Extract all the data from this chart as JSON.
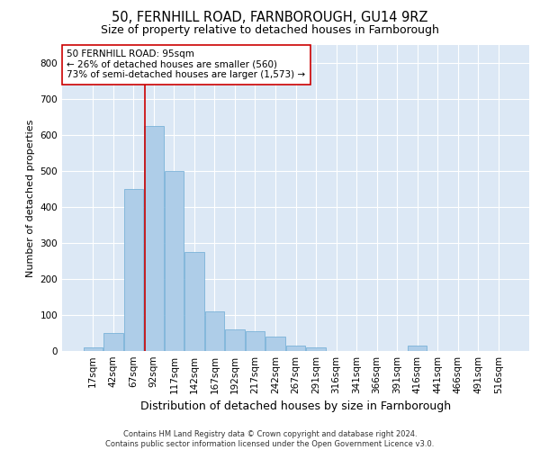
{
  "title": "50, FERNHILL ROAD, FARNBOROUGH, GU14 9RZ",
  "subtitle": "Size of property relative to detached houses in Farnborough",
  "xlabel": "Distribution of detached houses by size in Farnborough",
  "ylabel": "Number of detached properties",
  "footer1": "Contains HM Land Registry data © Crown copyright and database right 2024.",
  "footer2": "Contains public sector information licensed under the Open Government Licence v3.0.",
  "bar_labels": [
    "17sqm",
    "42sqm",
    "67sqm",
    "92sqm",
    "117sqm",
    "142sqm",
    "167sqm",
    "192sqm",
    "217sqm",
    "242sqm",
    "267sqm",
    "291sqm",
    "316sqm",
    "341sqm",
    "366sqm",
    "391sqm",
    "416sqm",
    "441sqm",
    "466sqm",
    "491sqm",
    "516sqm"
  ],
  "bar_values": [
    10,
    50,
    450,
    625,
    500,
    275,
    110,
    60,
    55,
    40,
    15,
    10,
    0,
    0,
    0,
    0,
    15,
    0,
    0,
    0,
    0
  ],
  "bar_color": "#aecde8",
  "bar_edge_color": "#6aaad4",
  "background_color": "#dce8f5",
  "property_line_x": 2.55,
  "property_line_color": "#cc0000",
  "annotation_text": "50 FERNHILL ROAD: 95sqm\n← 26% of detached houses are smaller (560)\n73% of semi-detached houses are larger (1,573) →",
  "annotation_box_color": "#cc0000",
  "ylim": [
    0,
    850
  ],
  "yticks": [
    0,
    100,
    200,
    300,
    400,
    500,
    600,
    700,
    800
  ],
  "title_fontsize": 10.5,
  "subtitle_fontsize": 9,
  "xlabel_fontsize": 9,
  "ylabel_fontsize": 8,
  "tick_fontsize": 7.5,
  "annot_fontsize": 7.5,
  "footer_fontsize": 6
}
